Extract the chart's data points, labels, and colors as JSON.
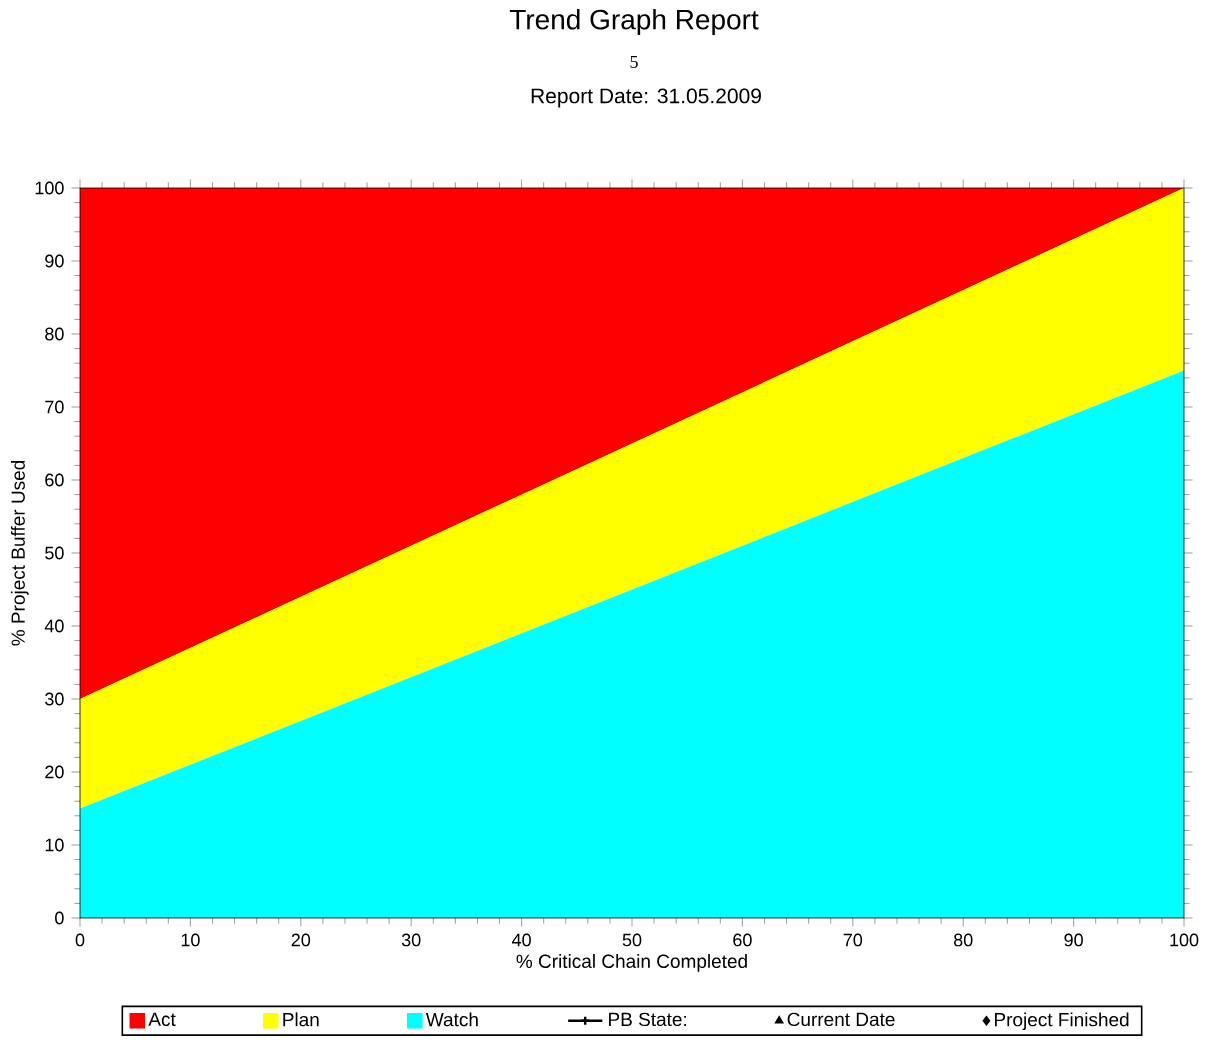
{
  "chart_data": {
    "type": "area",
    "title": "Trend Graph Report",
    "subtitle": "5",
    "annotations": [
      "Report Date: 31.05.2009"
    ],
    "xlabel": "% Critical Chain Completed",
    "ylabel": "% Project Buffer Used",
    "x": [
      0,
      100
    ],
    "stacked": true,
    "series": [
      {
        "name": "Watch",
        "color": "#00ffff",
        "values": [
          15,
          75
        ]
      },
      {
        "name": "Plan",
        "color": "#ffff00",
        "values": [
          15,
          25
        ]
      },
      {
        "name": "Act",
        "color": "#ff0000",
        "values": [
          70,
          0
        ]
      },
      {
        "name": "PB State:",
        "type": "line",
        "marker": "cross",
        "color": "#000000",
        "values": [
          null,
          null
        ]
      },
      {
        "name": "Current Date",
        "type": "scatter",
        "marker": "triangle",
        "color": "#000000",
        "values": [
          null,
          null
        ]
      },
      {
        "name": "Project Finished",
        "type": "scatter",
        "marker": "diamond",
        "color": "#000000",
        "values": [
          null,
          null
        ]
      }
    ],
    "xlim": [
      0,
      100
    ],
    "xticks": [
      0,
      10,
      20,
      30,
      40,
      50,
      60,
      70,
      80,
      90,
      100
    ],
    "ylim": [
      0,
      100
    ],
    "yticks": [
      0,
      10,
      20,
      30,
      40,
      50,
      60,
      70,
      80,
      90,
      100
    ],
    "grid": false,
    "legend": "bottom"
  }
}
